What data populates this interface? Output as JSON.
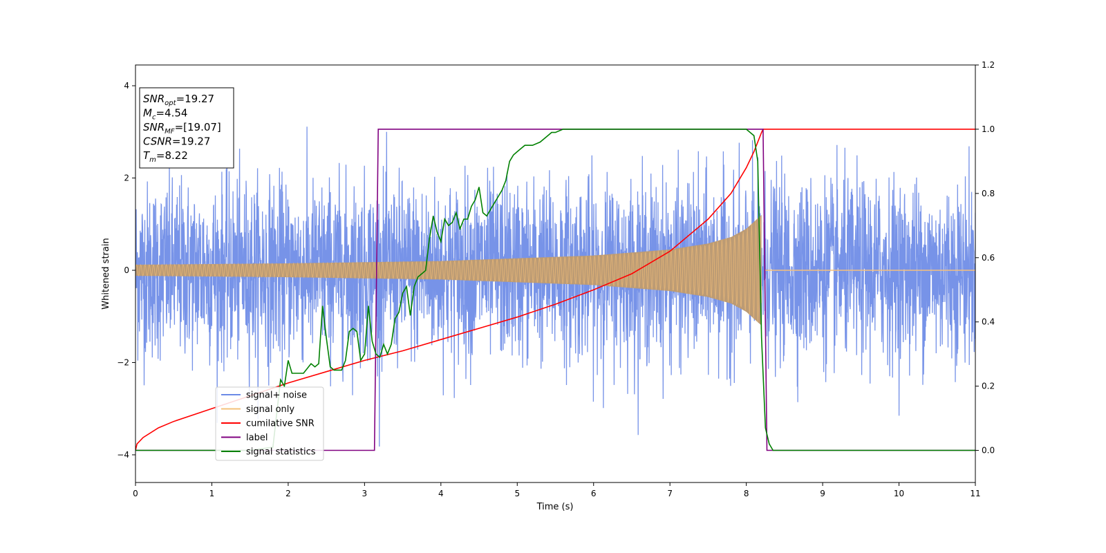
{
  "chart_data": {
    "type": "line",
    "xlabel": "Time (s)",
    "ylabel": "Whitened strain",
    "xlim": [
      0,
      11
    ],
    "ylim_left": [
      -4.6,
      4.45
    ],
    "ylim_right": [
      -0.1,
      1.2
    ],
    "x_ticks": [
      "0",
      "1",
      "2",
      "3",
      "4",
      "5",
      "6",
      "7",
      "8",
      "9",
      "10",
      "11"
    ],
    "y_left_ticks": [
      "−4",
      "−2",
      "0",
      "2",
      "4"
    ],
    "y_right_ticks": [
      "0.0",
      "0.2",
      "0.4",
      "0.6",
      "0.8",
      "1.0",
      "1.2"
    ],
    "grid": false,
    "legend_position": "lower-left",
    "colors": {
      "signal_noise": "#6b8ae6",
      "signal_only": "#f5c07a",
      "overlap": "#bc9b74",
      "cumulative_snr": "#ff0000",
      "label": "#800080",
      "statistics": "#008000"
    },
    "annotation": [
      {
        "name": "SNR",
        "sub": "opt",
        "value": "=19.27"
      },
      {
        "name": "M",
        "sub": "c",
        "value": "=4.54"
      },
      {
        "name": "SNR",
        "sub": "MF",
        "value": "=[19.07]"
      },
      {
        "name": "CSNR",
        "sub": "",
        "value": "=19.27"
      },
      {
        "name": "T",
        "sub": "m",
        "value": "=8.22"
      }
    ],
    "series": [
      {
        "name": "signal+ noise",
        "axis": "left",
        "style": "noise",
        "sigma": 0.95,
        "t_end": 11
      },
      {
        "name": "signal only",
        "axis": "left",
        "style": "chirp",
        "envelope": [
          [
            0,
            0.12
          ],
          [
            2,
            0.15
          ],
          [
            4,
            0.2
          ],
          [
            6,
            0.32
          ],
          [
            7,
            0.45
          ],
          [
            7.5,
            0.58
          ],
          [
            7.8,
            0.72
          ],
          [
            8.0,
            0.9
          ],
          [
            8.1,
            1.05
          ],
          [
            8.2,
            1.2
          ],
          [
            8.22,
            0
          ]
        ],
        "flat_after": 8.24
      },
      {
        "name": "cumilative SNR",
        "axis": "right",
        "style": "line",
        "x": [
          0,
          0.02,
          0.1,
          0.3,
          0.5,
          1,
          1.5,
          2,
          2.5,
          3,
          3.5,
          4,
          4.5,
          5,
          5.5,
          6,
          6.5,
          7,
          7.5,
          7.8,
          8.0,
          8.1,
          8.2,
          8.22,
          11
        ],
        "y": [
          0,
          0.02,
          0.04,
          0.07,
          0.09,
          0.13,
          0.17,
          0.21,
          0.245,
          0.28,
          0.31,
          0.345,
          0.38,
          0.415,
          0.455,
          0.5,
          0.55,
          0.62,
          0.72,
          0.8,
          0.88,
          0.93,
          0.99,
          1.0,
          1.0
        ]
      },
      {
        "name": "label",
        "axis": "right",
        "style": "line",
        "x": [
          0,
          3.13,
          3.18,
          8.2,
          8.22,
          8.27,
          11
        ],
        "y": [
          0,
          0,
          1,
          1,
          1,
          0,
          0
        ]
      },
      {
        "name": "signal statistics",
        "axis": "right",
        "style": "line",
        "x": [
          0,
          1.5,
          1.8,
          1.9,
          1.95,
          2.0,
          2.05,
          2.1,
          2.2,
          2.3,
          2.35,
          2.4,
          2.45,
          2.5,
          2.55,
          2.6,
          2.7,
          2.75,
          2.8,
          2.85,
          2.9,
          2.95,
          3.0,
          3.05,
          3.1,
          3.15,
          3.2,
          3.25,
          3.3,
          3.35,
          3.4,
          3.45,
          3.5,
          3.55,
          3.6,
          3.65,
          3.7,
          3.75,
          3.8,
          3.85,
          3.9,
          3.95,
          4.0,
          4.05,
          4.1,
          4.15,
          4.2,
          4.25,
          4.3,
          4.35,
          4.4,
          4.45,
          4.5,
          4.55,
          4.6,
          4.65,
          4.7,
          4.75,
          4.8,
          4.85,
          4.9,
          4.95,
          5.0,
          5.05,
          5.1,
          5.2,
          5.3,
          5.4,
          5.45,
          5.5,
          5.6,
          5.8,
          6.0,
          7.5,
          8.0,
          8.05,
          8.1,
          8.15,
          8.2,
          8.25,
          8.3,
          8.35,
          8.45,
          11
        ],
        "y": [
          0,
          0.0,
          0.01,
          0.22,
          0.2,
          0.28,
          0.24,
          0.24,
          0.24,
          0.27,
          0.26,
          0.27,
          0.45,
          0.35,
          0.26,
          0.25,
          0.25,
          0.28,
          0.37,
          0.38,
          0.37,
          0.28,
          0.3,
          0.45,
          0.34,
          0.3,
          0.29,
          0.33,
          0.3,
          0.33,
          0.41,
          0.43,
          0.49,
          0.51,
          0.42,
          0.51,
          0.54,
          0.55,
          0.56,
          0.66,
          0.73,
          0.68,
          0.65,
          0.72,
          0.7,
          0.71,
          0.74,
          0.69,
          0.72,
          0.72,
          0.76,
          0.78,
          0.82,
          0.74,
          0.73,
          0.75,
          0.77,
          0.79,
          0.81,
          0.84,
          0.9,
          0.92,
          0.93,
          0.94,
          0.95,
          0.95,
          0.96,
          0.98,
          0.99,
          0.99,
          1.0,
          1.0,
          1.0,
          1.0,
          1.0,
          0.99,
          0.98,
          0.9,
          0.35,
          0.07,
          0.02,
          0.0,
          0.0,
          0.0
        ]
      }
    ]
  }
}
